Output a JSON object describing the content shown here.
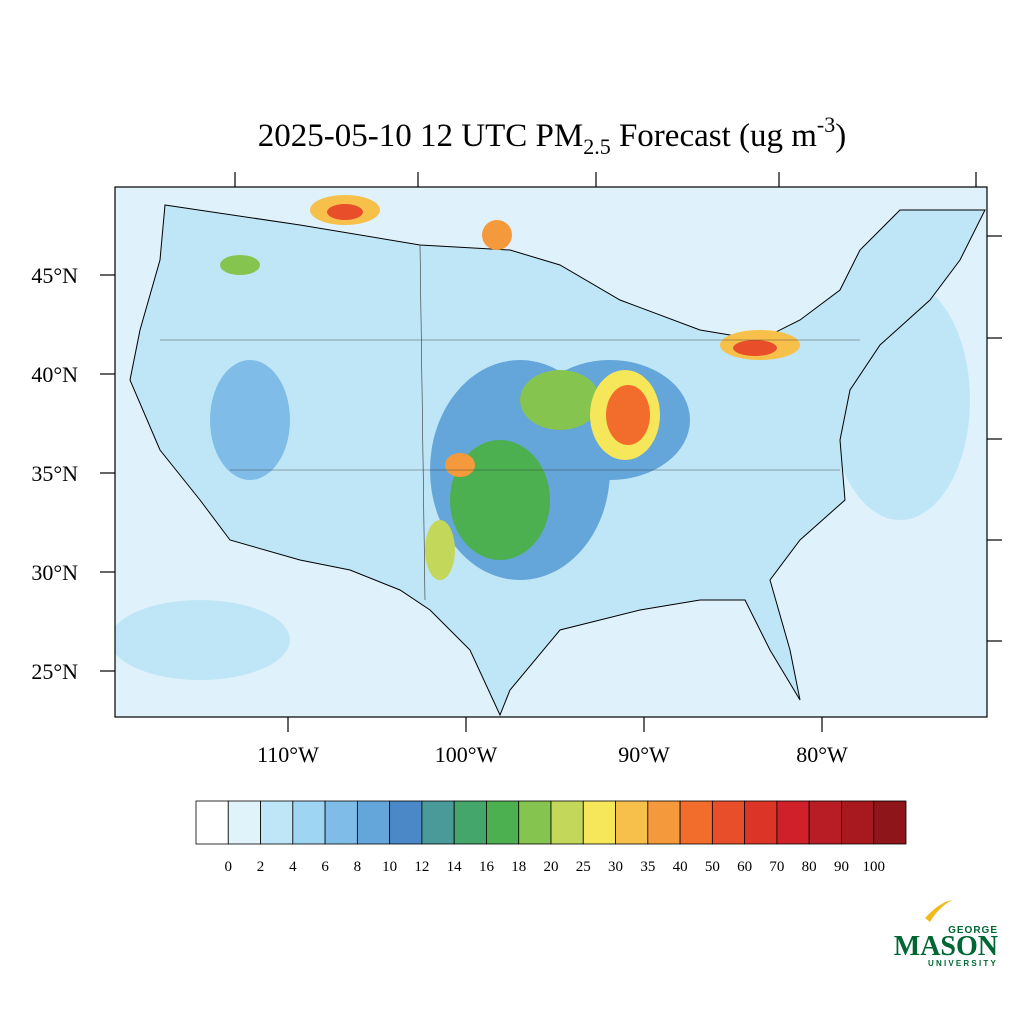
{
  "map": {
    "title_parts": [
      "2025-05-10 12 UTC PM",
      "2.5",
      " Forecast (ug m",
      "-3",
      ")"
    ],
    "lat_ticks": [
      {
        "value": 45,
        "label": "45°N"
      },
      {
        "value": 40,
        "label": "40°N"
      },
      {
        "value": 35,
        "label": "35°N"
      },
      {
        "value": 30,
        "label": "30°N"
      },
      {
        "value": 25,
        "label": "25°N"
      }
    ],
    "lon_ticks": [
      {
        "value": -110,
        "label": "110°W"
      },
      {
        "value": -100,
        "label": "100°W"
      },
      {
        "value": -90,
        "label": "90°W"
      },
      {
        "value": -80,
        "label": "80°W"
      }
    ],
    "colorbar": {
      "levels": [
        0,
        2,
        4,
        6,
        8,
        10,
        12,
        14,
        16,
        18,
        20,
        25,
        30,
        35,
        40,
        50,
        60,
        70,
        80,
        90,
        100
      ],
      "colors": [
        "#ffffff",
        "#e0f3fb",
        "#bfe6f7",
        "#9dd5f3",
        "#7fbde8",
        "#65a6da",
        "#4a88c7",
        "#4a9a9a",
        "#44a66a",
        "#4cb050",
        "#85c44e",
        "#c3d75a",
        "#f5e65a",
        "#f7c04a",
        "#f59a3c",
        "#f26c2c",
        "#e84e2a",
        "#dc3427",
        "#d0202a",
        "#b81c24",
        "#a8191f",
        "#8e1519"
      ]
    },
    "logo": {
      "top": "GEORGE",
      "main": "MASON",
      "bottom": "UNIVERSITY"
    }
  }
}
